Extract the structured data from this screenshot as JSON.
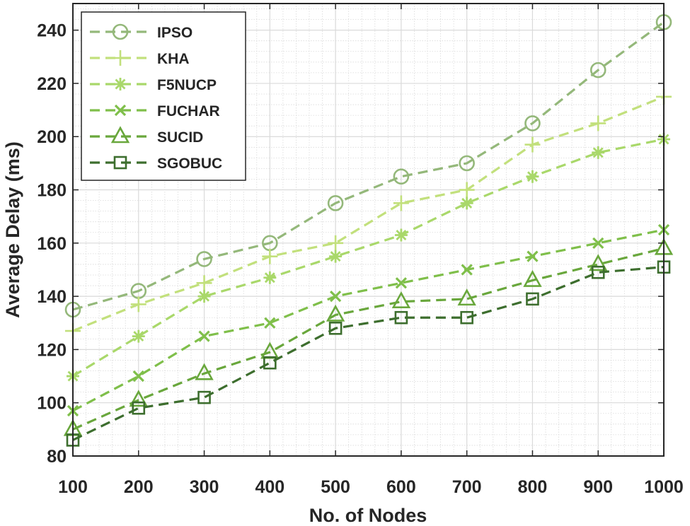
{
  "chart_data": {
    "type": "line",
    "title": "",
    "xlabel": "No. of Nodes",
    "ylabel": "Average Delay (ms)",
    "x": [
      100,
      200,
      300,
      400,
      500,
      600,
      700,
      800,
      900,
      1000
    ],
    "xlim": [
      100,
      1000
    ],
    "ylim": [
      80,
      250
    ],
    "xticks": [
      100,
      200,
      300,
      400,
      500,
      600,
      700,
      800,
      900,
      1000
    ],
    "yticks": [
      80,
      100,
      120,
      140,
      160,
      180,
      200,
      220,
      240
    ],
    "grid": true,
    "legend_position": "top-left",
    "series": [
      {
        "name": "IPSO",
        "marker": "circle",
        "color": "#94b87a",
        "values": [
          135,
          142,
          154,
          160,
          175,
          185,
          190,
          205,
          225,
          243
        ]
      },
      {
        "name": "KHA",
        "marker": "plus",
        "color": "#c2e07c",
        "values": [
          127,
          137,
          145,
          155,
          160,
          175,
          180,
          197,
          205,
          215
        ]
      },
      {
        "name": "F5NUCP",
        "marker": "asterisk",
        "color": "#a9d86a",
        "values": [
          110,
          125,
          140,
          147,
          155,
          163,
          175,
          185,
          194,
          199
        ]
      },
      {
        "name": "FUCHAR",
        "marker": "x",
        "color": "#7fbf4a",
        "values": [
          97,
          110,
          125,
          130,
          140,
          145,
          150,
          155,
          160,
          165
        ]
      },
      {
        "name": "SUCID",
        "marker": "triangle",
        "color": "#69a73c",
        "values": [
          90,
          101,
          111,
          119,
          133,
          138,
          139,
          146,
          152,
          158
        ]
      },
      {
        "name": "SGOBUC",
        "marker": "square",
        "color": "#3d6e2e",
        "values": [
          86,
          98,
          102,
          115,
          128,
          132,
          132,
          139,
          149,
          151
        ]
      }
    ]
  }
}
